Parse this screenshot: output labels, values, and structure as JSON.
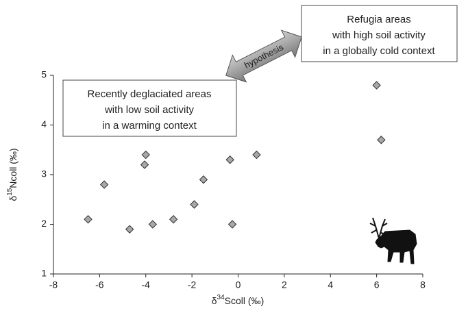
{
  "chart_data": {
    "type": "scatter",
    "x_label": {
      "symbol": "δ",
      "sup": "34",
      "rest": "Scoll (‰)"
    },
    "y_label": {
      "symbol": "δ",
      "sup": "15",
      "rest": "Ncoll (‰)"
    },
    "x": [
      -6.5,
      -5.8,
      -4.7,
      -4.0,
      -4.05,
      -3.7,
      -2.8,
      -1.9,
      -1.5,
      -0.35,
      -0.25,
      0.8,
      6.0,
      6.2
    ],
    "values": [
      2.1,
      2.8,
      1.9,
      3.4,
      3.2,
      2.0,
      2.1,
      2.4,
      2.9,
      3.3,
      2.0,
      3.4,
      4.8,
      3.7
    ],
    "color": "#a8a8a8",
    "xlim": [
      -8,
      8
    ],
    "ylim": [
      1,
      5
    ],
    "xticks": [
      -8,
      -6,
      -4,
      -2,
      0,
      2,
      4,
      6,
      8
    ],
    "yticks": [
      1,
      2,
      3,
      4,
      5
    ],
    "grid": false,
    "annotations": {
      "left_box": [
        "Recently deglaciated areas",
        "with low soil activity",
        "in a warming context"
      ],
      "right_box": [
        "Refugia areas",
        "with high soil activity",
        "in a globally cold context"
      ],
      "arrow": "hypothesis"
    }
  }
}
